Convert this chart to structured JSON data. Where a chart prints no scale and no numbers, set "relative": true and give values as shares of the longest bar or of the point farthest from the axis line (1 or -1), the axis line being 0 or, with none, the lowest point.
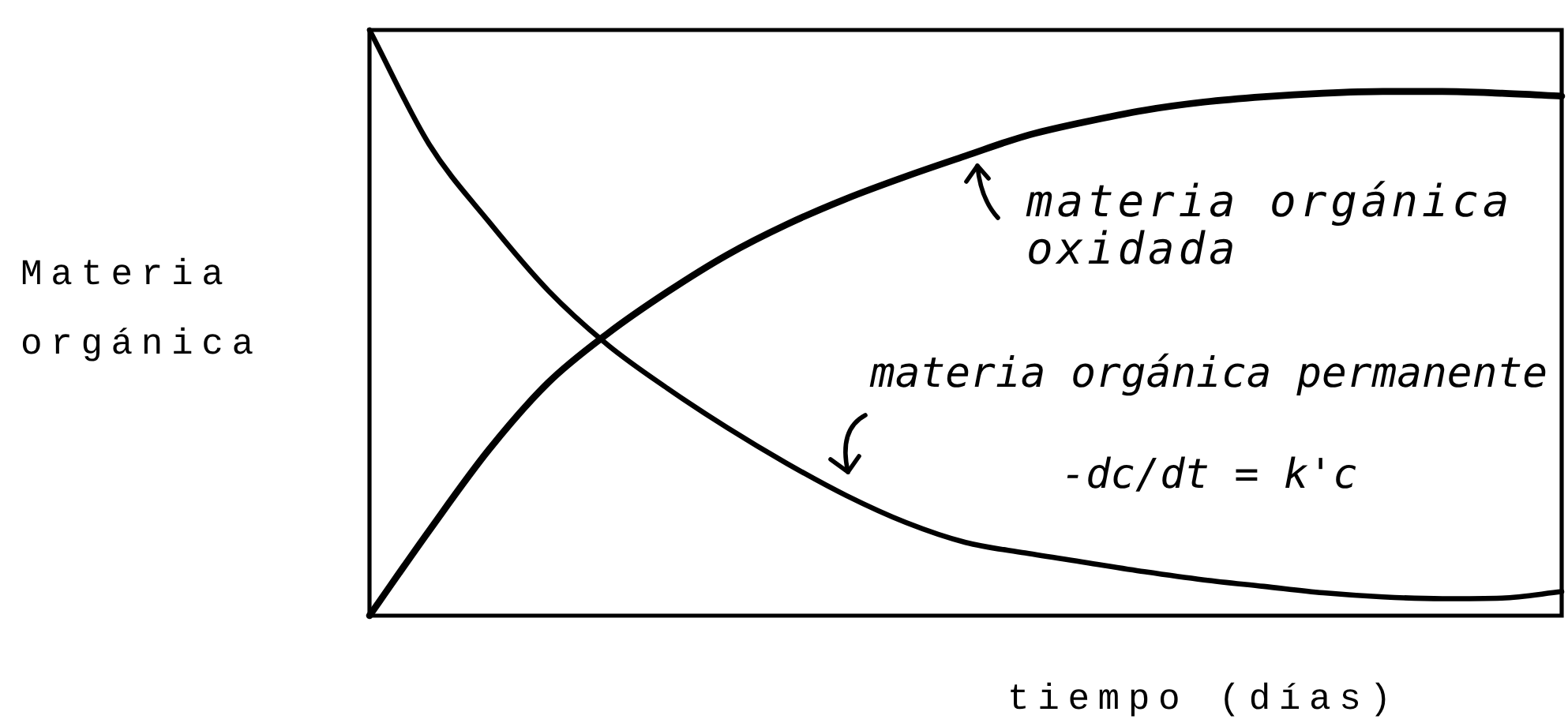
{
  "chart_data": {
    "type": "line",
    "relative": true,
    "xlabel": "tiempo (días)",
    "ylabel": "Materia orgánica",
    "categories": [
      null,
      null,
      null,
      null,
      null,
      null,
      null,
      null,
      null,
      null,
      null,
      null,
      null,
      null,
      null,
      null,
      null,
      null,
      null,
      null,
      null
    ],
    "series": [
      {
        "color": "#000000",
        "values": [
          0,
          0.145,
          0.283,
          0.398,
          0.482,
          0.553,
          0.616,
          0.668,
          0.712,
          0.75,
          0.785,
          0.819,
          0.843,
          0.863,
          0.877,
          0.886,
          0.892,
          0.895,
          0.895,
          0.892,
          0.887
        ]
      },
      {
        "color": "#000000",
        "values": [
          1,
          0.805,
          0.673,
          0.555,
          0.462,
          0.388,
          0.321,
          0.26,
          0.205,
          0.159,
          0.125,
          0.107,
          0.091,
          0.075,
          0.061,
          0.05,
          0.039,
          0.032,
          0.029,
          0.03,
          0.041
        ]
      }
    ],
    "annotations": [
      "materia orgánica oxidada",
      "materia orgánica permanente",
      "-dc/dt = k'c"
    ],
    "legend": false,
    "grid": false,
    "tick_labels": false
  }
}
